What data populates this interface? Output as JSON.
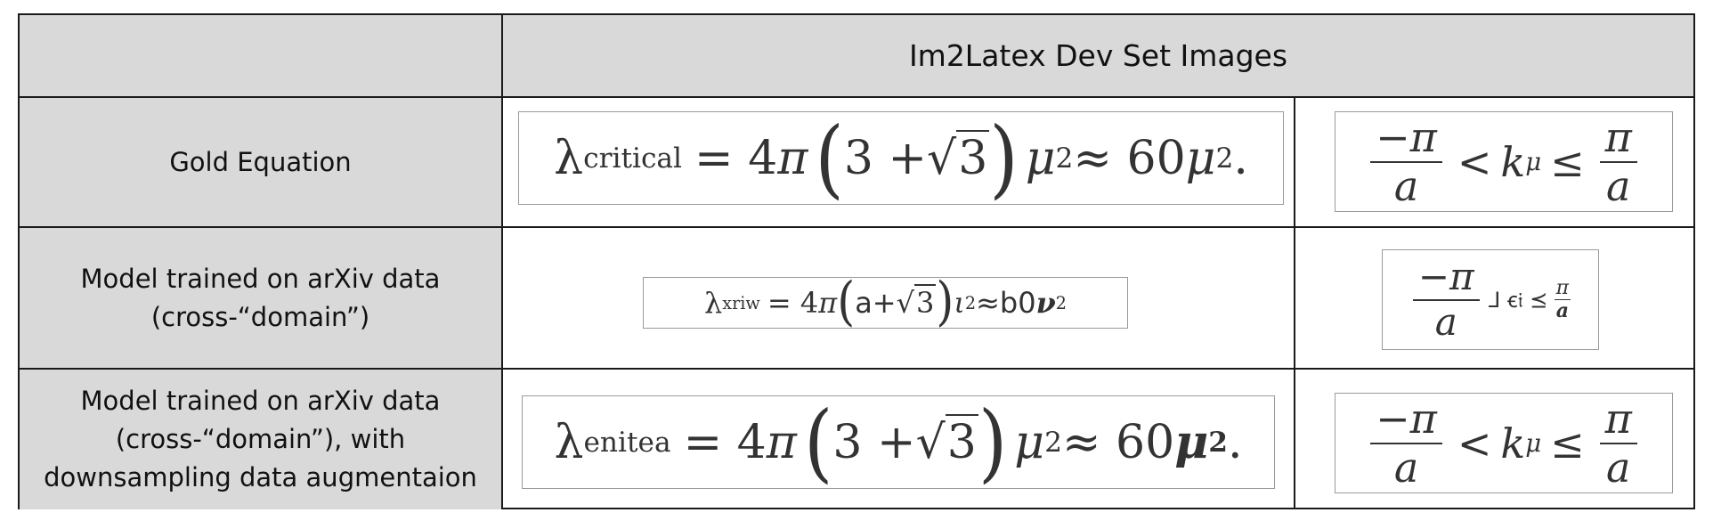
{
  "header": {
    "title": "Im2Latex Dev Set Images"
  },
  "rows": [
    {
      "label_lines": [
        "Gold Equation"
      ],
      "eq1": {
        "lambda": "λ",
        "sub": "critical",
        "rhs_a": "= 4",
        "pi": "π",
        "paren_l": "(",
        "inner_a": "3 + ",
        "sqrt_sym": "√",
        "sqrt_arg": "3",
        "paren_r": ")",
        "mu": "μ",
        "sup": "2",
        "approx": " ≈ 60",
        "mu2": "μ",
        "sup2": "2",
        "end": "."
      },
      "eq2": {
        "num": "−π",
        "lt": "<",
        "k": "k",
        "ksub": "μ",
        "le": "≤",
        "num2": "π",
        "den": "a",
        "den2": "a"
      }
    },
    {
      "label_lines": [
        "Model trained on arXiv data",
        "(cross-“domain”)"
      ],
      "eq1": {
        "lambda": "λ",
        "sub": "xriw",
        "rhs_a": "= 4",
        "pi": "π",
        "paren_l": "(",
        "inner_a": "a+",
        "sqrt_sym": "√",
        "sqrt_arg": "3",
        "paren_r": ")",
        "mu": "ι",
        "sup": "2",
        "approx": "≈b0",
        "mu2": "ν",
        "sup2": "2",
        "end": ""
      },
      "eq2": {
        "num": "−π",
        "den": "a",
        "tail": "⅃ ꞓ𝔦 ⪯",
        "num2": "π",
        "den2": "a"
      }
    },
    {
      "label_lines": [
        "Model trained on arXiv data",
        "(cross-“domain”), with",
        "downsampling data augmentaion"
      ],
      "eq1": {
        "lambda": "λ",
        "sub": "enitea",
        "rhs_a": "= 4",
        "pi": "π",
        "paren_l": "(",
        "inner_a": "3 + ",
        "sqrt_sym": "√",
        "sqrt_arg": "3",
        "paren_r": ")",
        "mu": "μ",
        "sup": "2",
        "approx": " ≈ 60",
        "mu2": "μ",
        "sup2": "2",
        "end": "."
      },
      "eq2": {
        "num": "−π",
        "lt": "<",
        "k": "k",
        "ksub": "μ",
        "le": "≤",
        "num2": "π",
        "den": "a",
        "den2": "a"
      }
    }
  ],
  "colors": {
    "header_bg": "#d9d9d9",
    "border": "#1a1a1a",
    "eq_border": "#9a9a9a"
  }
}
